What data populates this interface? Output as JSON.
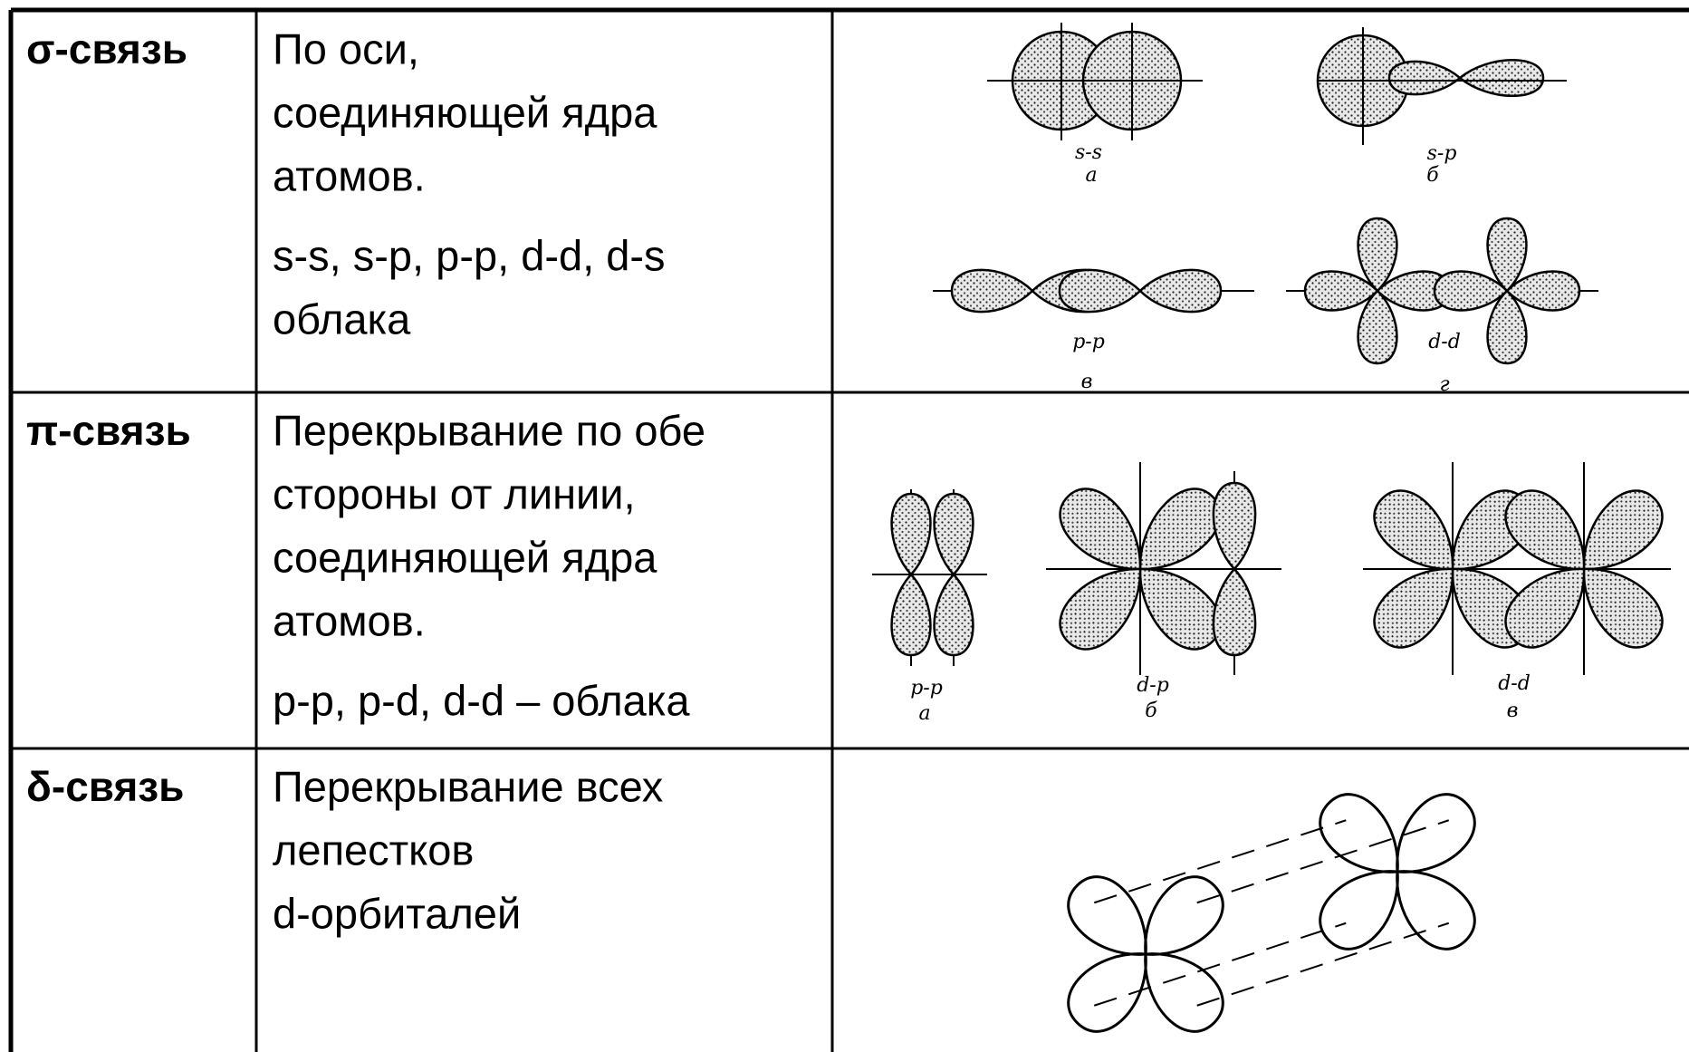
{
  "table": {
    "rows": [
      {
        "bond": "σ-связь",
        "description": [
          [
            "По оси,",
            "соединяющей ядра",
            "атомов."
          ],
          [
            "s-s, s-p, p-p, d-d, d-s",
            "облака"
          ]
        ],
        "diagrams": [
          {
            "name": "s-s",
            "letter": "а"
          },
          {
            "name": "s-p",
            "letter": "б"
          },
          {
            "name": "p-p",
            "letter": "в"
          },
          {
            "name": "d-d",
            "letter": "г"
          }
        ]
      },
      {
        "bond": "π-связь",
        "description": [
          [
            "Перекрывание по обе",
            "стороны от линии,",
            "соединяющей ядра",
            "атомов."
          ],
          [
            "p-p, p-d, d-d – облака"
          ]
        ],
        "diagrams": [
          {
            "name": "p-p",
            "letter": "а"
          },
          {
            "name": "d-p",
            "letter": "б"
          },
          {
            "name": "d-d",
            "letter": "в"
          }
        ]
      },
      {
        "bond": "δ-связь",
        "description": [
          [
            "Перекрывание всех",
            "лепестков",
            "d-орбиталей"
          ]
        ]
      }
    ]
  }
}
